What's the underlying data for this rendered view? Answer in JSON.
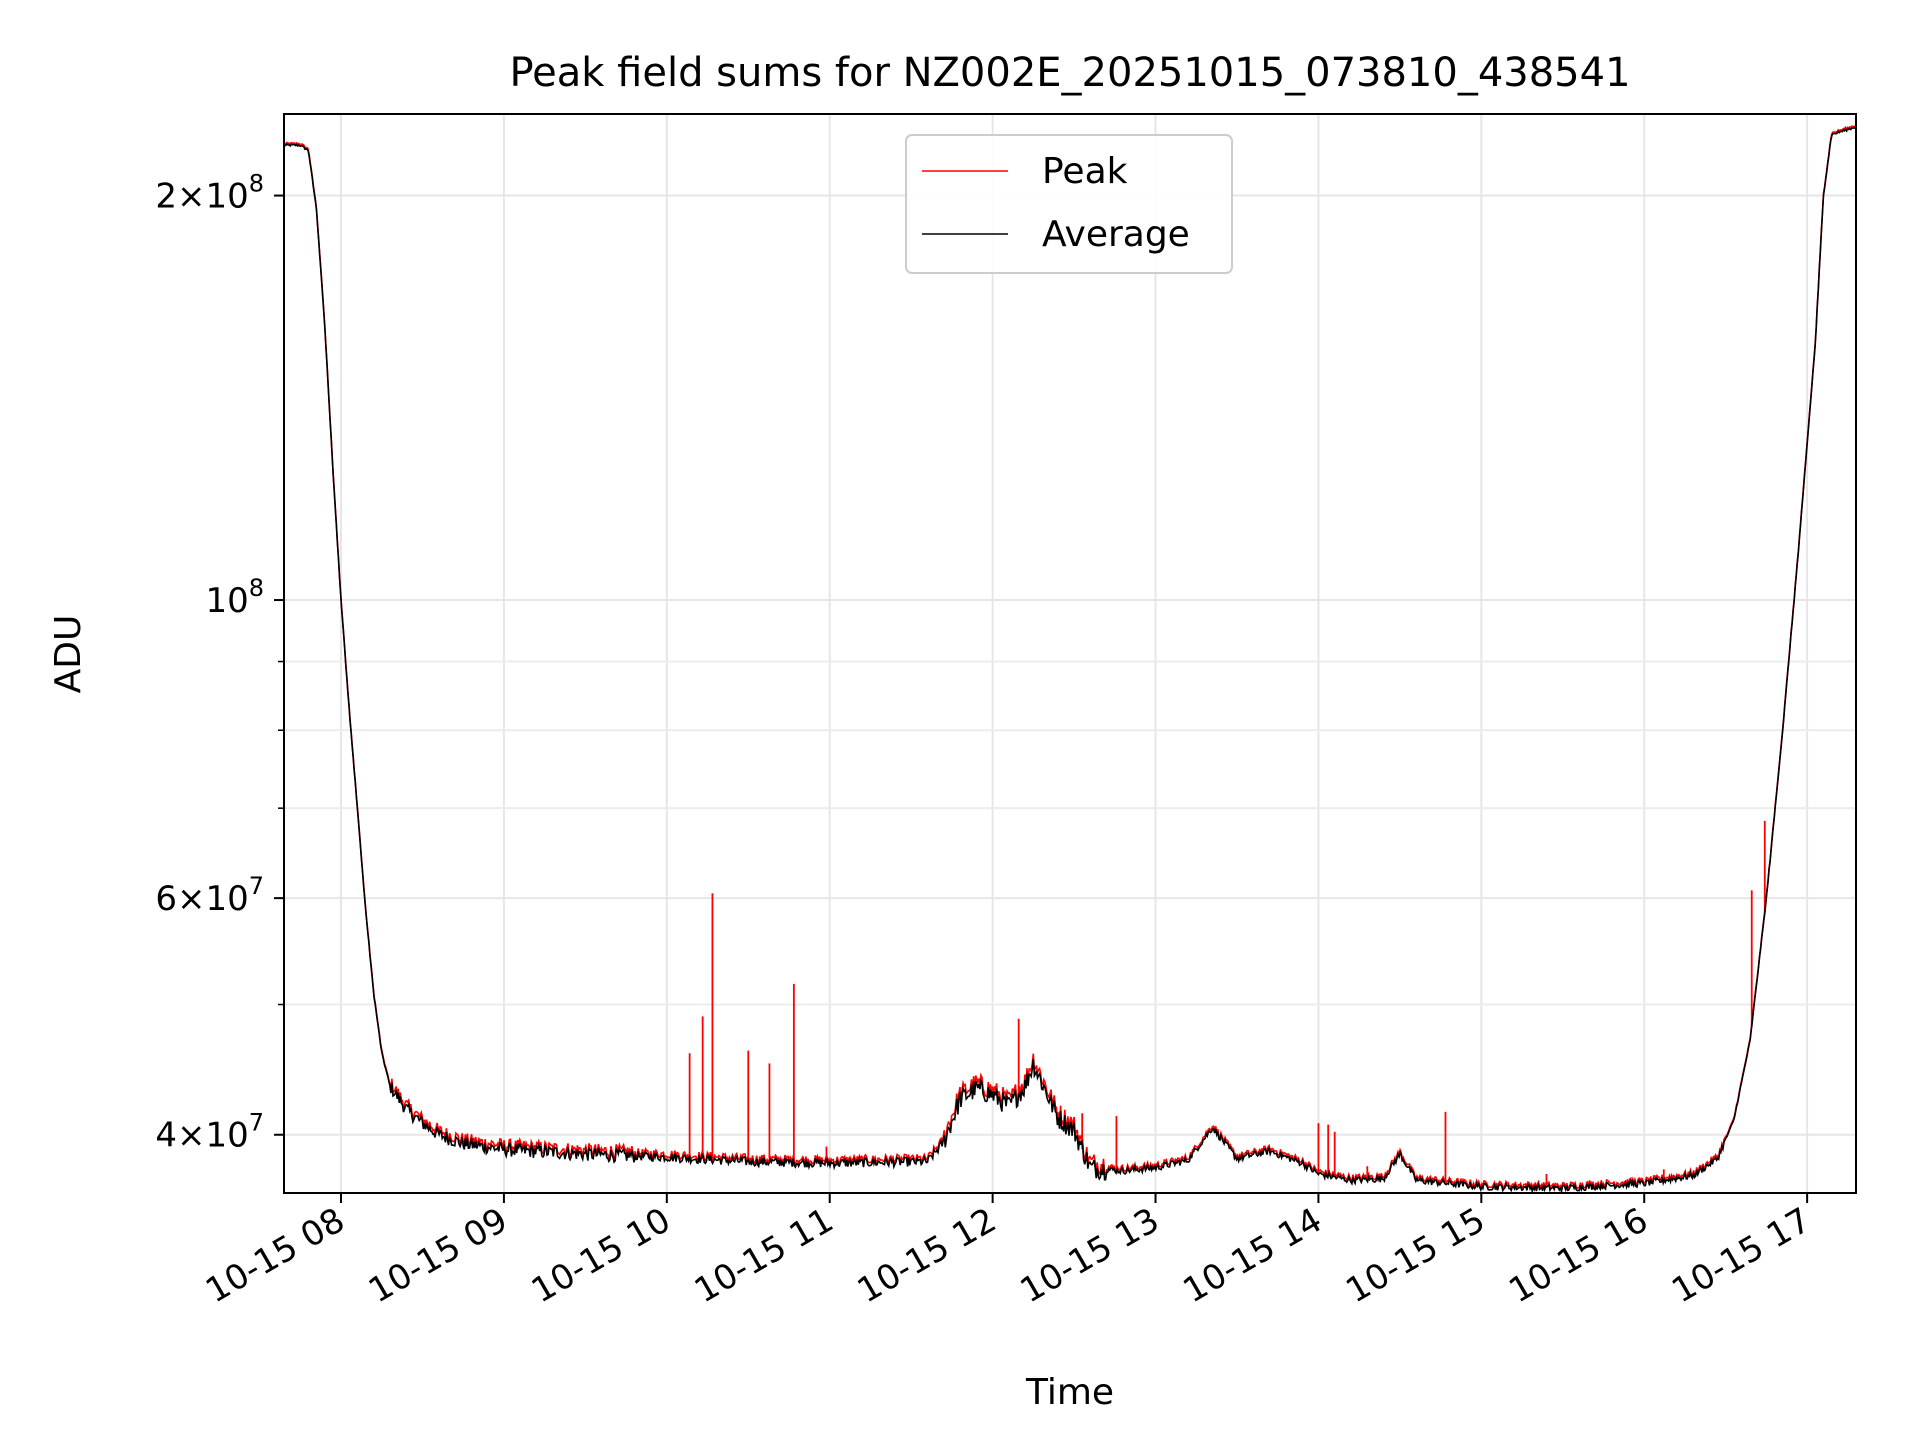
{
  "chart_data": {
    "type": "line",
    "title": "Peak field sums for NZ002E_20251015_073810_438541",
    "xlabel": "Time",
    "ylabel": "ADU",
    "yscale": "log",
    "ylim": [
      36200000,
      230000000
    ],
    "xlim_hours": [
      7.65,
      17.3
    ],
    "grid": true,
    "legend_position": "upper center",
    "x_ticks": [
      {
        "label": "10-15 08",
        "hour": 8
      },
      {
        "label": "10-15 09",
        "hour": 9
      },
      {
        "label": "10-15 10",
        "hour": 10
      },
      {
        "label": "10-15 11",
        "hour": 11
      },
      {
        "label": "10-15 12",
        "hour": 12
      },
      {
        "label": "10-15 13",
        "hour": 13
      },
      {
        "label": "10-15 14",
        "hour": 14
      },
      {
        "label": "10-15 15",
        "hour": 15
      },
      {
        "label": "10-15 16",
        "hour": 16
      },
      {
        "label": "10-15 17",
        "hour": 17
      }
    ],
    "y_ticks": [
      {
        "base": "4",
        "exp": "7",
        "value": 40000000,
        "mantissa": true
      },
      {
        "base": "6",
        "exp": "7",
        "value": 60000000,
        "mantissa": true
      },
      {
        "base": "10",
        "exp": "8",
        "value": 100000000,
        "mantissa": false
      },
      {
        "base": "2",
        "exp": "8",
        "value": 200000000,
        "mantissa": true
      }
    ],
    "y_minor_ticks": [
      50000000,
      70000000,
      80000000,
      90000000
    ],
    "series": [
      {
        "name": "Average",
        "color": "#000000",
        "points": [
          [
            7.65,
            218000000
          ],
          [
            7.75,
            218000000
          ],
          [
            7.8,
            216000000
          ],
          [
            7.85,
            195000000
          ],
          [
            7.9,
            160000000
          ],
          [
            7.95,
            125000000
          ],
          [
            8.0,
            100000000
          ],
          [
            8.05,
            83000000
          ],
          [
            8.1,
            70000000
          ],
          [
            8.15,
            59000000
          ],
          [
            8.2,
            51000000
          ],
          [
            8.25,
            46000000
          ],
          [
            8.3,
            43500000
          ],
          [
            8.4,
            41800000
          ],
          [
            8.5,
            40800000
          ],
          [
            8.6,
            40000000
          ],
          [
            8.75,
            39400000
          ],
          [
            9.0,
            39000000
          ],
          [
            9.5,
            38700000
          ],
          [
            10.0,
            38500000
          ],
          [
            10.5,
            38200000
          ],
          [
            11.0,
            38100000
          ],
          [
            11.6,
            38200000
          ],
          [
            11.7,
            39500000
          ],
          [
            11.8,
            42500000
          ],
          [
            11.9,
            43300000
          ],
          [
            12.0,
            42800000
          ],
          [
            12.1,
            42000000
          ],
          [
            12.2,
            43500000
          ],
          [
            12.25,
            45200000
          ],
          [
            12.3,
            43800000
          ],
          [
            12.4,
            41200000
          ],
          [
            12.5,
            40300000
          ],
          [
            12.6,
            37800000
          ],
          [
            12.8,
            37600000
          ],
          [
            13.0,
            37800000
          ],
          [
            13.2,
            38300000
          ],
          [
            13.35,
            40500000
          ],
          [
            13.5,
            38400000
          ],
          [
            13.7,
            38900000
          ],
          [
            13.9,
            38100000
          ],
          [
            14.0,
            37400000
          ],
          [
            14.2,
            37000000
          ],
          [
            14.4,
            37100000
          ],
          [
            14.5,
            38700000
          ],
          [
            14.6,
            37000000
          ],
          [
            14.8,
            36800000
          ],
          [
            15.0,
            36600000
          ],
          [
            15.5,
            36500000
          ],
          [
            16.0,
            36800000
          ],
          [
            16.3,
            37300000
          ],
          [
            16.45,
            38400000
          ],
          [
            16.55,
            41000000
          ],
          [
            16.65,
            47000000
          ],
          [
            16.75,
            60000000
          ],
          [
            16.85,
            80000000
          ],
          [
            16.95,
            110000000
          ],
          [
            17.05,
            155000000
          ],
          [
            17.1,
            200000000
          ],
          [
            17.15,
            222000000
          ],
          [
            17.3,
            225000000
          ]
        ]
      },
      {
        "name": "Peak",
        "color": "#ff0000",
        "spikes": [
          {
            "hour": 10.14,
            "value": 46000000
          },
          {
            "hour": 10.22,
            "value": 49000000
          },
          {
            "hour": 10.28,
            "value": 60500000
          },
          {
            "hour": 10.5,
            "value": 46200000
          },
          {
            "hour": 10.63,
            "value": 45200000
          },
          {
            "hour": 10.78,
            "value": 51800000
          },
          {
            "hour": 10.98,
            "value": 39200000
          },
          {
            "hour": 12.16,
            "value": 48800000
          },
          {
            "hour": 12.55,
            "value": 41500000
          },
          {
            "hour": 12.76,
            "value": 41300000
          },
          {
            "hour": 14.0,
            "value": 40800000
          },
          {
            "hour": 14.06,
            "value": 40700000
          },
          {
            "hour": 14.1,
            "value": 40200000
          },
          {
            "hour": 14.3,
            "value": 37900000
          },
          {
            "hour": 14.78,
            "value": 41600000
          },
          {
            "hour": 15.4,
            "value": 37400000
          },
          {
            "hour": 16.12,
            "value": 37700000
          },
          {
            "hour": 16.66,
            "value": 60800000
          },
          {
            "hour": 16.74,
            "value": 68500000
          }
        ]
      }
    ]
  }
}
